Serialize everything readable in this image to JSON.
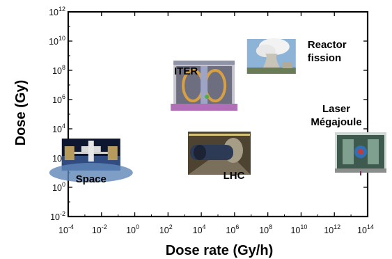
{
  "chart_data": {
    "type": "scatter",
    "title": "",
    "xlabel": "Dose rate (Gy/h)",
    "ylabel": "Dose (Gy)",
    "x_scale": "log",
    "y_scale": "log",
    "xlim": [
      0.0001,
      100000000000000
    ],
    "ylim": [
      0.01,
      1000000000000
    ],
    "x_ticks": [
      {
        "base": "10",
        "exp": "-4"
      },
      {
        "base": "10",
        "exp": "-2"
      },
      {
        "base": "10",
        "exp": "0"
      },
      {
        "base": "10",
        "exp": "2"
      },
      {
        "base": "10",
        "exp": "4"
      },
      {
        "base": "10",
        "exp": "6"
      },
      {
        "base": "10",
        "exp": "8"
      },
      {
        "base": "10",
        "exp": "10"
      },
      {
        "base": "10",
        "exp": "12"
      },
      {
        "base": "10",
        "exp": "14"
      }
    ],
    "y_ticks": [
      {
        "base": "10",
        "exp": "-2"
      },
      {
        "base": "10",
        "exp": "0"
      },
      {
        "base": "10",
        "exp": "2"
      },
      {
        "base": "10",
        "exp": "4"
      },
      {
        "base": "10",
        "exp": "6"
      },
      {
        "base": "10",
        "exp": "8"
      },
      {
        "base": "10",
        "exp": "10"
      },
      {
        "base": "10",
        "exp": "12"
      }
    ],
    "grid": false,
    "legend": "none",
    "points": [
      {
        "name": "Space",
        "label_lines": [
          "Space"
        ],
        "x": 0.01,
        "y": 100,
        "icon": "space-station-photo"
      },
      {
        "name": "ITER",
        "label_lines": [
          "ITER"
        ],
        "x": 10000,
        "y": 1000000,
        "icon": "iter-tokamak-photo"
      },
      {
        "name": "LHC",
        "label_lines": [
          "LHC"
        ],
        "x": 100000,
        "y": 1000,
        "icon": "lhc-tunnel-photo"
      },
      {
        "name": "Reactor fission",
        "label_lines": [
          "Reactor",
          "fission"
        ],
        "x": 10000000,
        "y": 100000000,
        "icon": "reactor-cooling-tower-photo"
      },
      {
        "name": "Laser Mégajoule",
        "label_lines": [
          "Laser",
          "Mégajoule"
        ],
        "x": 100000000000000,
        "y": 10,
        "icon": "laser-megajoule-chamber-photo"
      }
    ]
  },
  "colors": {
    "axis": "#000000",
    "text": "#111111",
    "sky": "#8db3d6",
    "tokamak": "#6d6f80",
    "tunnel": "#4d4330",
    "space": "#304c80",
    "laser": "#3e5a4e"
  }
}
